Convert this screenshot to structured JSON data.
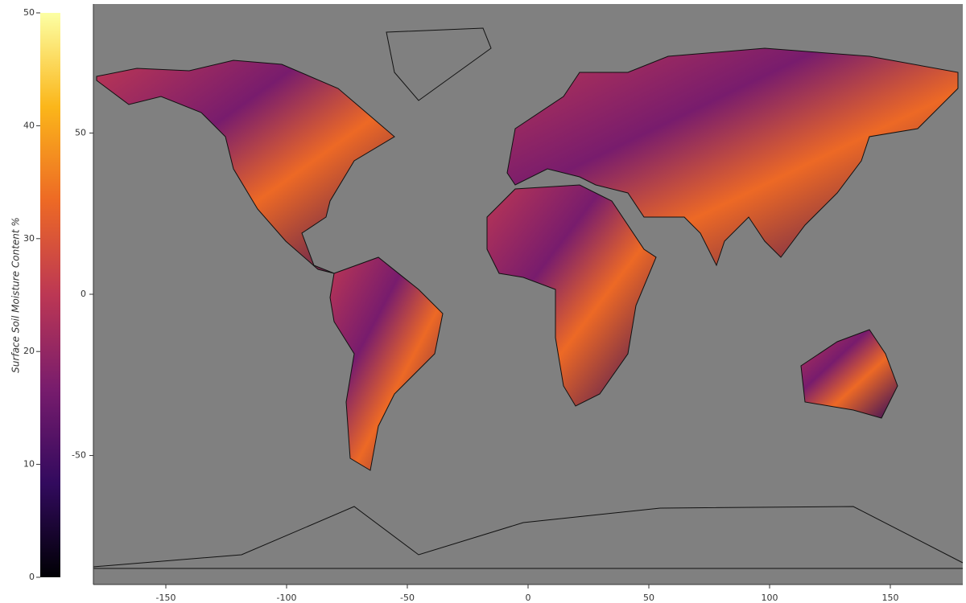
{
  "chart_data": {
    "type": "map",
    "xlim": [
      -180,
      180
    ],
    "xticks": [
      -150,
      -100,
      -50,
      0,
      50,
      100,
      150
    ],
    "ylim": [
      -90,
      90
    ],
    "yticks": [
      -50,
      0,
      50
    ],
    "colorbar": {
      "label": "Surface Soil Moisture Content %",
      "clim": [
        0,
        50
      ],
      "ticks": [
        0,
        10,
        20,
        30,
        40,
        50
      ],
      "colorscale": [
        "#000004",
        "#320a5e",
        "#781c6d",
        "#bc3754",
        "#ed6925",
        "#fbb61a",
        "#fcffa4"
      ]
    },
    "background": "#808080"
  }
}
